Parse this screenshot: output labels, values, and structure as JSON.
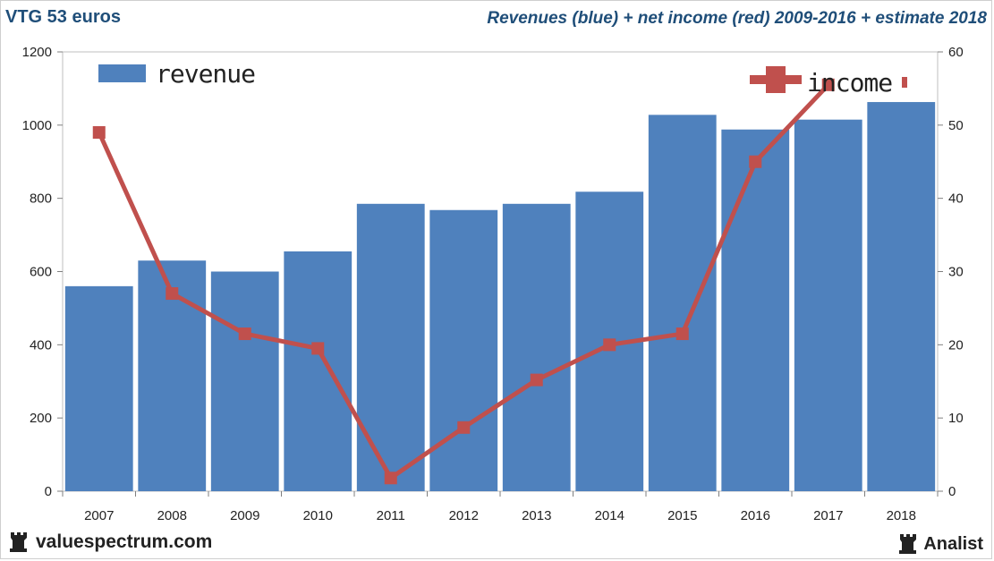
{
  "header": {
    "left_title": "VTG 53 euros",
    "right_title": "Revenues (blue) + net income (red) 2009-2016 + estimate 2018"
  },
  "footer": {
    "left_brand": "valuespectrum.com",
    "right_brand": "Analist"
  },
  "colors": {
    "bar": "#4f81bd",
    "line": "#c0504d",
    "title": "#1f4e79"
  },
  "chart_data": {
    "type": "bar",
    "categories": [
      "2007",
      "2008",
      "2009",
      "2010",
      "2011",
      "2012",
      "2013",
      "2014",
      "2015",
      "2016",
      "2017",
      "2018"
    ],
    "series": [
      {
        "name": "revenue",
        "axis": "left",
        "type": "bar",
        "values": [
          560,
          630,
          600,
          655,
          785,
          768,
          785,
          818,
          1028,
          988,
          1015,
          1063
        ]
      },
      {
        "name": "income",
        "axis": "right",
        "type": "line",
        "values": [
          49,
          27,
          21.5,
          19.5,
          1.8,
          8.7,
          15.2,
          20,
          21.5,
          45,
          55.5,
          null
        ]
      }
    ],
    "y_left": {
      "min": 0,
      "max": 1200,
      "ticks": [
        0,
        200,
        400,
        600,
        800,
        1000,
        1200
      ]
    },
    "y_right": {
      "min": 0,
      "max": 60,
      "ticks": [
        0,
        10,
        20,
        30,
        40,
        50,
        60
      ]
    },
    "legend": [
      {
        "label": "revenue",
        "position": "top-left"
      },
      {
        "label": "income",
        "position": "top-right"
      }
    ],
    "grid": false
  }
}
